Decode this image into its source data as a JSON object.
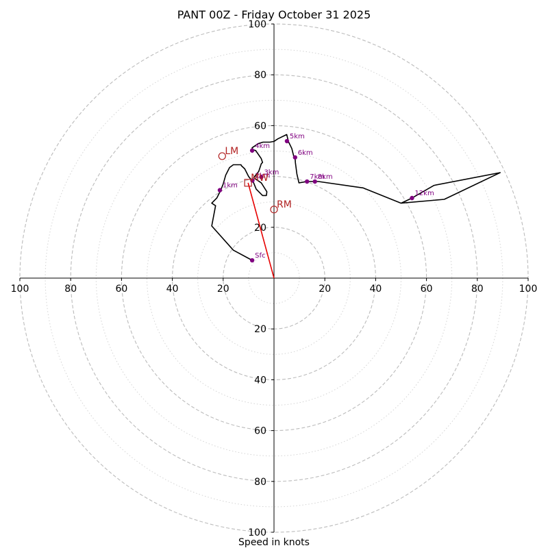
{
  "chart_data": {
    "type": "hodograph",
    "title": "PANT 00Z - Friday October 31 2025",
    "xlabel": "Speed in knots",
    "axis_range": [
      -100,
      100
    ],
    "ring_major": [
      20,
      40,
      60,
      80,
      100
    ],
    "ring_minor": [
      10,
      30,
      50,
      70,
      90
    ],
    "x_ticks": [
      {
        "value": -100,
        "label": "100"
      },
      {
        "value": -80,
        "label": "80"
      },
      {
        "value": -60,
        "label": "60"
      },
      {
        "value": -40,
        "label": "40"
      },
      {
        "value": -20,
        "label": "20"
      },
      {
        "value": 20,
        "label": "20"
      },
      {
        "value": 40,
        "label": "40"
      },
      {
        "value": 60,
        "label": "60"
      },
      {
        "value": 80,
        "label": "80"
      },
      {
        "value": 100,
        "label": "100"
      }
    ],
    "y_ticks": [
      {
        "value": 100,
        "label": "100"
      },
      {
        "value": 80,
        "label": "80"
      },
      {
        "value": 60,
        "label": "60"
      },
      {
        "value": 20,
        "label": "20"
      },
      {
        "value": -20,
        "label": "20"
      },
      {
        "value": -40,
        "label": "40"
      },
      {
        "value": -60,
        "label": "60"
      },
      {
        "value": -80,
        "label": "80"
      },
      {
        "value": -100,
        "label": "100"
      }
    ],
    "hodograph_line": [
      [
        -8.6,
        7.0
      ],
      [
        -16,
        11
      ],
      [
        -24.5,
        20.5
      ],
      [
        -23,
        28.5
      ],
      [
        -24.5,
        29.5
      ],
      [
        -22.5,
        31.5
      ],
      [
        -21,
        34.5
      ],
      [
        -20,
        37
      ],
      [
        -19,
        40.5
      ],
      [
        -17.5,
        43.5
      ],
      [
        -16,
        44.6
      ],
      [
        -13,
        44.6
      ],
      [
        -12.8,
        44.2
      ],
      [
        -11.5,
        43
      ],
      [
        -10,
        40
      ],
      [
        -8,
        37.5
      ],
      [
        -7,
        35
      ],
      [
        -4.5,
        32.5
      ],
      [
        -3,
        32.5
      ],
      [
        -2.8,
        34
      ],
      [
        -5,
        37.5
      ],
      [
        -8,
        39.5
      ],
      [
        -6,
        42
      ],
      [
        -5,
        45
      ],
      [
        -4.5,
        45.5
      ],
      [
        -5,
        47
      ],
      [
        -7.2,
        50.2
      ],
      [
        -8.3,
        50.5
      ],
      [
        -8.6,
        51.3
      ],
      [
        -6.2,
        52.9
      ],
      [
        -4.3,
        53.5
      ],
      [
        -1.6,
        53.5
      ],
      [
        0,
        53.8
      ],
      [
        1.5,
        54.8
      ],
      [
        5,
        56.5
      ],
      [
        5.7,
        53.7
      ],
      [
        7,
        51
      ],
      [
        8,
        47
      ],
      [
        8.3,
        47.5
      ],
      [
        8.4,
        45.5
      ],
      [
        9,
        41
      ],
      [
        9.8,
        37.5
      ],
      [
        13,
        38
      ],
      [
        16,
        38
      ],
      [
        17.5,
        38
      ],
      [
        35,
        35.5
      ],
      [
        50,
        29.5
      ],
      [
        54.3,
        31.5
      ],
      [
        63,
        36.5
      ],
      [
        89,
        41.5
      ],
      [
        67,
        31
      ],
      [
        50,
        29.5
      ]
    ],
    "height_markers": [
      {
        "label": "Sfc",
        "u": -8.6,
        "v": 7.0
      },
      {
        "label": "1km",
        "u": -21.3,
        "v": 34.6
      },
      {
        "label": "2km",
        "u": -8.5,
        "v": 38.4
      },
      {
        "label": "3km",
        "u": -5.0,
        "v": 39.8
      },
      {
        "label": "4km",
        "u": -8.6,
        "v": 50.2
      },
      {
        "label": "5km",
        "u": 5.1,
        "v": 53.9
      },
      {
        "label": "6km",
        "u": 8.3,
        "v": 47.5
      },
      {
        "label": "7km",
        "u": 13.0,
        "v": 38.0
      },
      {
        "label": "8km",
        "u": 16.1,
        "v": 38.0
      },
      {
        "label": "12km",
        "u": 54.3,
        "v": 31.5
      }
    ],
    "storm_motion": [
      {
        "label": "LM",
        "u": -20.4,
        "v": 48.0,
        "symbol": "circle"
      },
      {
        "label": "RM",
        "u": 0.0,
        "v": 27.0,
        "symbol": "circle"
      },
      {
        "label": "MW",
        "u": -10.2,
        "v": 37.5,
        "symbol": "square"
      }
    ],
    "shear_vector": {
      "from": [
        0,
        0
      ],
      "to": [
        -10.2,
        37.5
      ]
    }
  }
}
